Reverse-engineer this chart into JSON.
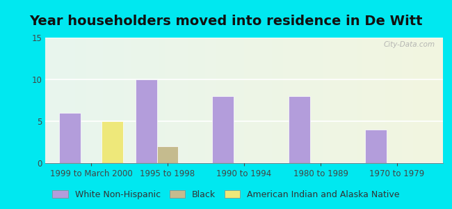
{
  "title": "Year householders moved into residence in De Witt",
  "categories": [
    "1999 to March 2000",
    "1995 to 1998",
    "1990 to 1994",
    "1980 to 1989",
    "1970 to 1979"
  ],
  "series": [
    {
      "name": "White Non-Hispanic",
      "color": "#b39ddb",
      "values": [
        6,
        10,
        8,
        8,
        4
      ]
    },
    {
      "name": "Black",
      "color": "#c5bb8e",
      "values": [
        0,
        2,
        0,
        0,
        0
      ]
    },
    {
      "name": "American Indian and Alaska Native",
      "color": "#eee87a",
      "values": [
        5,
        0,
        0,
        0,
        0
      ]
    }
  ],
  "ylim": [
    0,
    15
  ],
  "yticks": [
    0,
    5,
    10,
    15
  ],
  "bar_width": 0.28,
  "background_color": "#00e8f0",
  "title_fontsize": 14,
  "legend_fontsize": 9,
  "tick_fontsize": 8.5,
  "watermark": "City-Data.com"
}
